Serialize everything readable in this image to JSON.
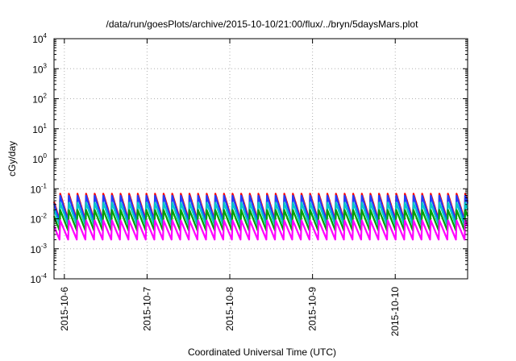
{
  "chart_data": {
    "type": "line",
    "title": "/data/run/goesPlots/archive/2015-10-10/21:00/flux/../bryn/5daysMars.plot",
    "xlabel": "Coordinated Universal Time (UTC)",
    "ylabel": "cGy/day",
    "y_scale": "log",
    "ylim": [
      0.0001,
      10000
    ],
    "y_ticks": [
      {
        "base": "10",
        "exp": "-4"
      },
      {
        "base": "10",
        "exp": "-3"
      },
      {
        "base": "10",
        "exp": "-2"
      },
      {
        "base": "10",
        "exp": "-1"
      },
      {
        "base": "10",
        "exp": "0"
      },
      {
        "base": "10",
        "exp": "1"
      },
      {
        "base": "10",
        "exp": "2"
      },
      {
        "base": "10",
        "exp": "3"
      },
      {
        "base": "10",
        "exp": "4"
      }
    ],
    "xlim": [
      "2015-10-05T21:00",
      "2015-10-10T21:00"
    ],
    "x_ticks": [
      "2015-10-6",
      "2015-10-7",
      "2015-10-8",
      "2015-10-9",
      "2015-10-10"
    ],
    "grid": true,
    "period_hours": 2.5,
    "series": [
      {
        "color": "#ff0000",
        "peak": 0.07,
        "trough": 0.009
      },
      {
        "color": "#1f3fff",
        "peak": 0.06,
        "trough": 0.008
      },
      {
        "color": "#00c8c8",
        "peak": 0.035,
        "trough": 0.006
      },
      {
        "color": "#00a000",
        "peak": 0.02,
        "trough": 0.004
      },
      {
        "color": "#ff00ff",
        "peak": 0.009,
        "trough": 0.002
      }
    ]
  }
}
